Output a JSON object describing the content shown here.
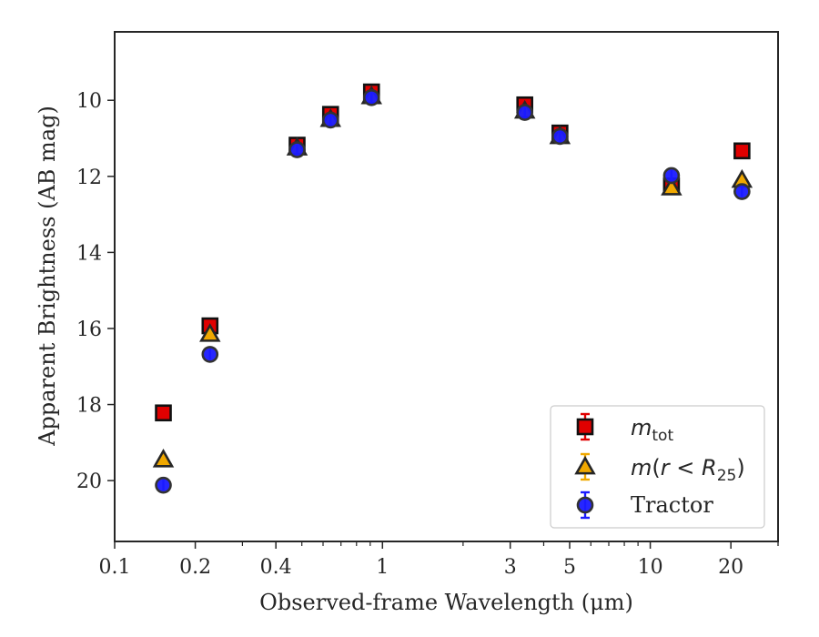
{
  "chart_data": {
    "type": "scatter",
    "xlabel": "Observed-frame Wavelength (μm)",
    "ylabel": "Apparent Brightness (AB mag)",
    "x_scale": "log",
    "xlim": [
      0.1,
      30
    ],
    "ylim": [
      21.6,
      8.2
    ],
    "y_inverted": true,
    "x_ticks": [
      0.1,
      0.2,
      0.4,
      1,
      3,
      5,
      10,
      20
    ],
    "x_tick_labels": [
      "0.1",
      "0.2",
      "0.4",
      "1",
      "3",
      "5",
      "10",
      "20"
    ],
    "y_ticks": [
      10,
      12,
      14,
      16,
      18,
      20
    ],
    "y_tick_labels": [
      "10",
      "12",
      "14",
      "16",
      "18",
      "20"
    ],
    "grid": false,
    "legend_position": "lower-right",
    "legend": [
      "m_tot",
      "m(r < R25)",
      "Tractor"
    ],
    "series": [
      {
        "name": "m_tot",
        "marker": "square",
        "color": "#e00000",
        "x": [
          0.152,
          0.227,
          0.48,
          0.64,
          0.91,
          3.4,
          4.6,
          12.0,
          22.0
        ],
        "y": [
          18.22,
          15.93,
          11.18,
          10.37,
          9.78,
          10.12,
          10.86,
          12.25,
          11.33
        ]
      },
      {
        "name": "m(r < R25)",
        "marker": "triangle",
        "color": "#f0a800",
        "x": [
          0.152,
          0.227,
          0.48,
          0.64,
          0.91,
          3.4,
          4.6,
          12.0,
          22.0
        ],
        "y": [
          19.45,
          16.15,
          11.25,
          10.5,
          9.9,
          10.28,
          10.95,
          12.3,
          12.1
        ]
      },
      {
        "name": "Tractor",
        "marker": "circle",
        "color": "#1a1aff",
        "x": [
          0.152,
          0.227,
          0.48,
          0.64,
          0.91,
          3.4,
          4.6,
          12.0,
          22.0
        ],
        "y": [
          20.12,
          16.68,
          11.3,
          10.52,
          9.93,
          10.32,
          10.95,
          11.98,
          12.4
        ]
      }
    ]
  }
}
